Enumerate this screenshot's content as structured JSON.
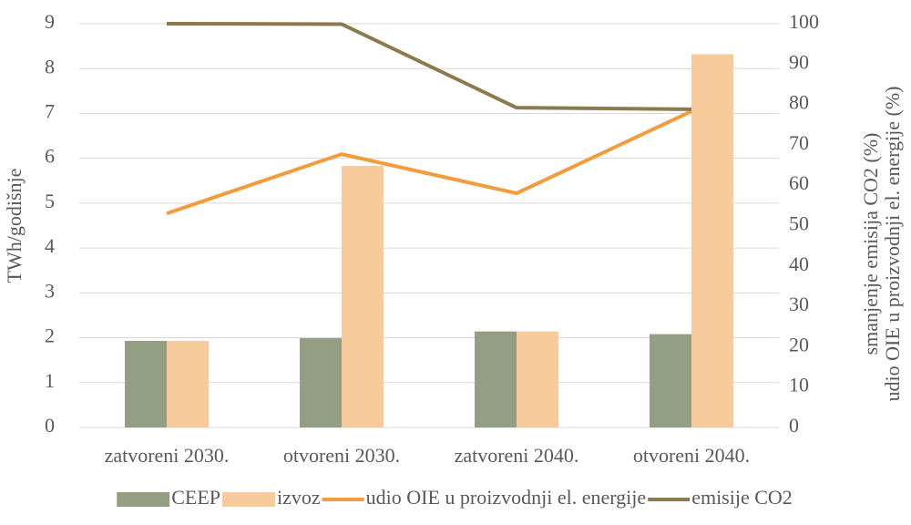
{
  "chart_data": {
    "type": "bar-line",
    "categories": [
      "zatvoreni 2030.",
      "otvoreni 2030.",
      "zatvoreni 2040.",
      "otvoreni 2040."
    ],
    "ylabel": "TWh/godišnje",
    "y2label": [
      "smanjenje emisija CO2 (%)",
      "udio OIE u proizvodnji el. energije (%)"
    ],
    "ylim": [
      0,
      9
    ],
    "yticks": [
      0,
      1,
      2,
      3,
      4,
      5,
      6,
      7,
      8,
      9
    ],
    "y2lim": [
      0,
      100
    ],
    "y2ticks": [
      0,
      10,
      20,
      30,
      40,
      50,
      60,
      70,
      80,
      90,
      100
    ],
    "grid": true,
    "legend": "bottom",
    "series": [
      {
        "name": "CEEP",
        "type": "bar",
        "color": "#939e83",
        "values": [
          1.93,
          1.99,
          2.14,
          2.08
        ]
      },
      {
        "name": "izvoz",
        "type": "bar",
        "color": "#f8cb9c",
        "values": [
          1.93,
          5.83,
          2.14,
          8.32
        ]
      },
      {
        "name": "udio OIE u proizvodnji el. energije",
        "type": "line",
        "axis": "y2",
        "color": "#f39c3c",
        "values": [
          53.0,
          67.7,
          58.0,
          78.3
        ]
      },
      {
        "name": "emisije CO2",
        "type": "line",
        "axis": "y2",
        "color": "#8b7a4e",
        "values": [
          100,
          99.9,
          79.2,
          78.8
        ]
      }
    ]
  }
}
